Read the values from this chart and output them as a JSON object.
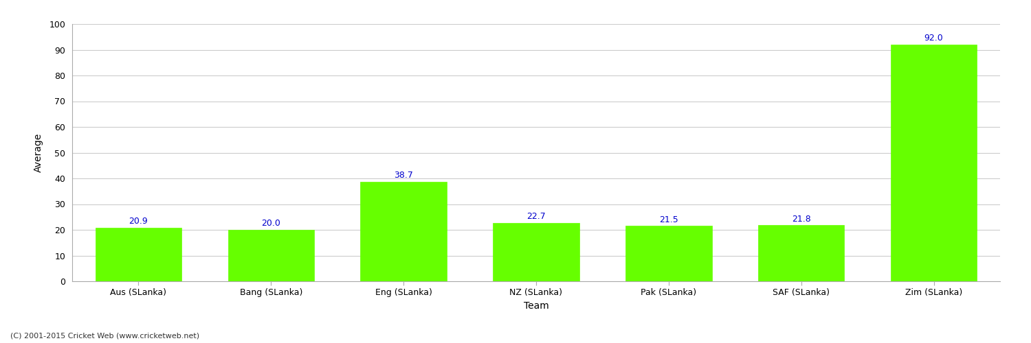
{
  "categories": [
    "Aus (SLanka)",
    "Bang (SLanka)",
    "Eng (SLanka)",
    "NZ (SLanka)",
    "Pak (SLanka)",
    "SAF (SLanka)",
    "Zim (SLanka)"
  ],
  "values": [
    20.9,
    20.0,
    38.7,
    22.7,
    21.5,
    21.8,
    92.0
  ],
  "bar_color": "#66ff00",
  "bar_edge_color": "#66ff00",
  "value_label_color": "#0000cc",
  "ylabel": "Average",
  "xlabel": "Team",
  "ylim": [
    0,
    100
  ],
  "yticks": [
    0,
    10,
    20,
    30,
    40,
    50,
    60,
    70,
    80,
    90,
    100
  ],
  "background_color": "#ffffff",
  "grid_color": "#cccccc",
  "footnote": "(C) 2001-2015 Cricket Web (www.cricketweb.net)",
  "footnote_color": "#333333",
  "value_fontsize": 9,
  "axis_label_fontsize": 10,
  "tick_label_fontsize": 9,
  "footnote_fontsize": 8,
  "bar_width": 0.65
}
